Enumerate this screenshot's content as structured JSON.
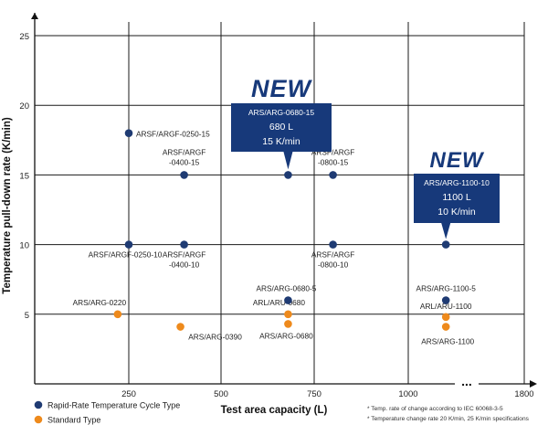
{
  "chart_data": {
    "type": "scatter",
    "title": "",
    "xlabel": "Test area capacity (L)",
    "ylabel": "Temperature pull-down rate (K/min)",
    "x_tick_labels": [
      "250",
      "500",
      "750",
      "1000",
      "1800"
    ],
    "x_break": "...",
    "y_ticks": [
      5,
      10,
      15,
      20,
      25
    ],
    "ylim": [
      0,
      27
    ],
    "grid": true,
    "legend_position": "bottom-left",
    "colors": {
      "rapid": "#1f3b73",
      "standard": "#ee8a1c",
      "callout": "#17397a",
      "grid": "#1a1a1a"
    },
    "series": [
      {
        "name": "Rapid-Rate Temperature Cycle Type",
        "key": "rapid",
        "points": [
          {
            "x": 250,
            "y": 18,
            "label": [
              "ARSF/ARGF-0250-15"
            ]
          },
          {
            "x": 400,
            "y": 15,
            "label": [
              "ARSF/ARGF",
              "-0400-15"
            ]
          },
          {
            "x": 680,
            "y": 15,
            "label": []
          },
          {
            "x": 800,
            "y": 15,
            "label": [
              "ARSF/ARGF",
              "-0800-15"
            ]
          },
          {
            "x": 250,
            "y": 10,
            "label": [
              "ARSF/ARGF-0250-10"
            ]
          },
          {
            "x": 400,
            "y": 10,
            "label": [
              "ARSF/ARGF",
              "-0400-10"
            ]
          },
          {
            "x": 800,
            "y": 10,
            "label": [
              "ARSF/ARGF",
              "-0800-10"
            ]
          },
          {
            "x": 1100,
            "y": 10,
            "label": []
          },
          {
            "x": 680,
            "y": 6,
            "label": [
              "ARS/ARG-0680-5"
            ]
          },
          {
            "x": 1100,
            "y": 6,
            "label": [
              "ARS/ARG-1100-5"
            ]
          }
        ]
      },
      {
        "name": "Standard Type",
        "key": "standard",
        "points": [
          {
            "x": 220,
            "y": 5,
            "label": [
              "ARS/ARG-0220"
            ]
          },
          {
            "x": 390,
            "y": 4.1,
            "label": [
              "ARS/ARG-0390"
            ]
          },
          {
            "x": 680,
            "y": 5,
            "label": [
              "ARL/ARU-0680"
            ]
          },
          {
            "x": 680,
            "y": 4.3,
            "label": [
              "ARS/ARG-0680"
            ]
          },
          {
            "x": 1100,
            "y": 4.8,
            "label": [
              "ARL/ARU-1100"
            ]
          },
          {
            "x": 1100,
            "y": 4.1,
            "label": [
              "ARS/ARG-1100"
            ]
          }
        ]
      }
    ],
    "callouts": [
      {
        "badge": "NEW",
        "x": 680,
        "y": 15,
        "lines": [
          "ARS/ARG-0680-15",
          "680 L",
          "15 K/min"
        ]
      },
      {
        "badge": "NEW",
        "x": 1100,
        "y": 10,
        "lines": [
          "ARS/ARG-1100-10",
          "1100 L",
          "10 K/min"
        ]
      }
    ],
    "legend": [
      "Rapid-Rate Temperature Cycle Type",
      "Standard Type"
    ],
    "footnotes": [
      "* Temp. rate of change according to IEC 60068-3-5",
      "* Temperature change rate 20 K/min, 25 K/min specifications"
    ]
  }
}
